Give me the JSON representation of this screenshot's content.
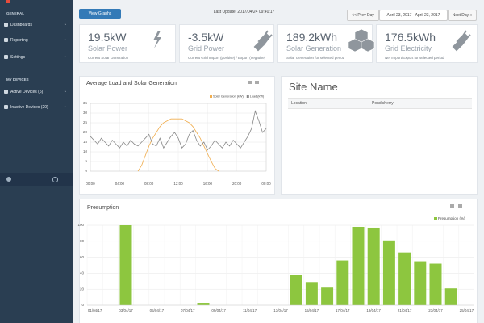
{
  "sidebar": {
    "sections": [
      {
        "title": "GENERAL",
        "items": [
          "Dashboards",
          "Reporting",
          "Settings"
        ]
      },
      {
        "title": "MY DEVICES",
        "items": [
          "Active Devices (5)",
          "Inactive Devices (20)"
        ]
      }
    ]
  },
  "toolbar": {
    "button": "View Graphs",
    "last_update": "Last Update: 2017/04/24 09:40:17",
    "prev": "<< Prev Day",
    "range": "April 23, 2017 - April 23, 2017",
    "next": "Next Day »"
  },
  "cards": [
    {
      "value": "19.5kW",
      "label": "Solar Power",
      "description": "Current Solar Generation"
    },
    {
      "value": "-3.5kW",
      "label": "Grid Power",
      "description": "Current Grid Import (positive) / Export (negative)"
    },
    {
      "value": "189.2kWh",
      "label": "Solar Generation",
      "description": "Solar Generation for selected period"
    },
    {
      "value": "176.5kWh",
      "label": "Grid Electricity",
      "description": "Net Import/Export for selected period"
    }
  ],
  "load_chart": {
    "type": "line",
    "title": "Average Load and Solar Generation",
    "x": [
      0,
      0.5,
      1,
      1.5,
      2,
      2.5,
      3,
      3.5,
      4,
      4.5,
      5,
      5.5,
      6,
      6.5,
      7,
      7.5,
      8,
      8.5,
      9,
      9.5,
      10,
      10.5,
      11,
      11.5,
      12,
      12.5,
      13,
      13.5,
      14,
      14.5,
      15,
      15.5,
      16,
      16.5,
      17,
      17.5,
      18,
      18.5,
      19,
      19.5,
      20,
      20.5,
      21,
      21.5,
      22,
      22.5,
      23,
      23.5,
      24
    ],
    "series": [
      {
        "name": "Solar Generation (kW)",
        "color": "#f0ad4e",
        "values": [
          null,
          null,
          null,
          null,
          null,
          null,
          null,
          null,
          null,
          null,
          null,
          null,
          null,
          0,
          3,
          8,
          13,
          17,
          20,
          23,
          25,
          26,
          27,
          27,
          27,
          27,
          26,
          25,
          23,
          20,
          17,
          13,
          9,
          5,
          1.5,
          0,
          null,
          null,
          null,
          null,
          null,
          null,
          null,
          null,
          null,
          null,
          null,
          null,
          null
        ]
      },
      {
        "name": "Load (kW)",
        "color": "#888888",
        "values": [
          18,
          16,
          14,
          17,
          15,
          13,
          16,
          14,
          12,
          15,
          13,
          16,
          14,
          13,
          15,
          17,
          19,
          14,
          13,
          17,
          12,
          15,
          18,
          20,
          17,
          12,
          14,
          19,
          21,
          16,
          13,
          15,
          11,
          13,
          16,
          14,
          12,
          15,
          13,
          16,
          14,
          12,
          15,
          18,
          22,
          31,
          26,
          20,
          22
        ]
      }
    ],
    "xlim": [
      0,
      24
    ],
    "xticks": [
      {
        "value": 0,
        "label": "00:00"
      },
      {
        "value": 4,
        "label": "04:00"
      },
      {
        "value": 8,
        "label": "08:00"
      },
      {
        "value": 12,
        "label": "12:00"
      },
      {
        "value": 16,
        "label": "16:00"
      },
      {
        "value": 20,
        "label": "20:00"
      },
      {
        "value": 24,
        "label": "00:00"
      }
    ],
    "ylim": [
      0,
      35
    ],
    "yticks": [
      0,
      5,
      10,
      15,
      20,
      25,
      30,
      35
    ],
    "grid": true
  },
  "site": {
    "title": "Site Name",
    "rows": [
      [
        "Location",
        "Pondicherry"
      ]
    ]
  },
  "presumption_chart": {
    "type": "bar",
    "title": "Presumption",
    "categories": [
      "01/04/17",
      null,
      "03/04/17",
      null,
      "05/04/17",
      null,
      "07/04/17",
      null,
      "09/04/17",
      null,
      "11/04/17",
      null,
      "13/04/17",
      null,
      "15/04/17",
      null,
      "17/04/17",
      null,
      "19/04/17",
      null,
      "21/04/17",
      null,
      "23/04/17",
      null,
      "25/04/17"
    ],
    "series": [
      {
        "name": "Presumption (%)",
        "color": "#8dc63f",
        "values": [
          null,
          null,
          100,
          null,
          null,
          null,
          null,
          3,
          null,
          null,
          null,
          null,
          null,
          38,
          29,
          22,
          56,
          98,
          97,
          81,
          66,
          55,
          52,
          21,
          null
        ]
      }
    ],
    "ylim": [
      0,
      100
    ],
    "yticks": [
      0,
      20,
      40,
      60,
      80,
      100
    ],
    "grid": true
  }
}
